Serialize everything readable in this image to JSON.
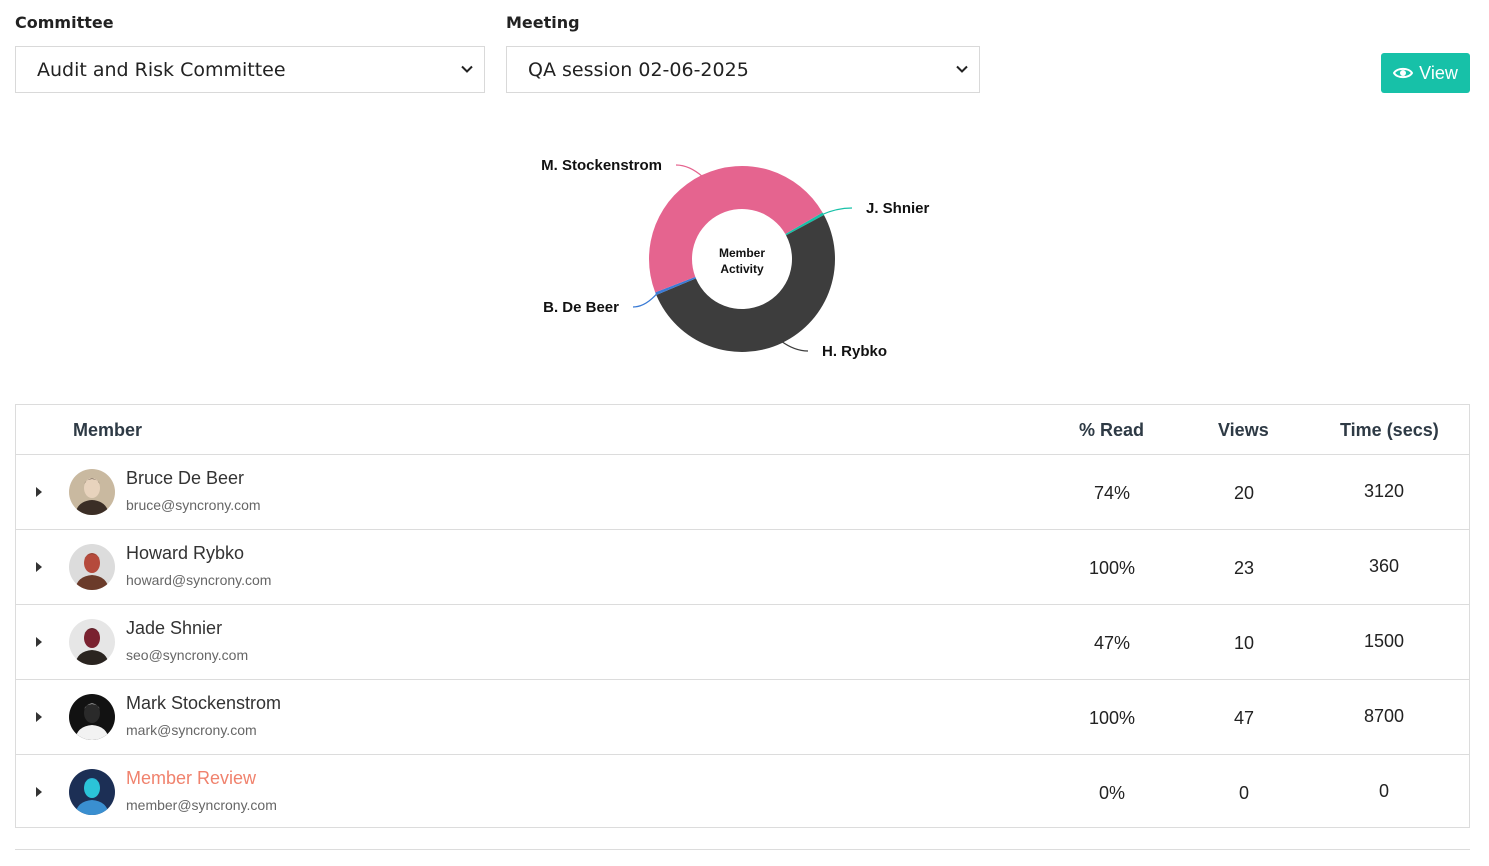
{
  "filters": {
    "committee_label": "Committee",
    "committee_value": "Audit and Risk Committee",
    "meeting_label": "Meeting",
    "meeting_value": "QA session 02-06-2025"
  },
  "view_button": {
    "label": "View",
    "icon": "eye-icon",
    "color": "#17c1a8"
  },
  "chart_data": {
    "type": "pie",
    "center_label": [
      "Member",
      "Activity"
    ],
    "categories": [
      "J. Shnier",
      "H. Rybko",
      "B. De Beer",
      "M. Stockenstrom"
    ],
    "values": [
      0.5,
      51.5,
      0.5,
      47.5
    ],
    "colors": [
      "#17c1a8",
      "#3d3d3d",
      "#3a7bd5",
      "#e5648f"
    ]
  },
  "table": {
    "headers": {
      "member": "Member",
      "read": "% Read",
      "views": "Views",
      "time": "Time (secs)"
    },
    "rows": [
      {
        "name": "Bruce De Beer",
        "email": "bruce@syncrony.com",
        "read": "74%",
        "views": "20",
        "time": "3120",
        "highlight": false
      },
      {
        "name": "Howard Rybko",
        "email": "howard@syncrony.com",
        "read": "100%",
        "views": "23",
        "time": "360",
        "highlight": false
      },
      {
        "name": "Jade Shnier",
        "email": "seo@syncrony.com",
        "read": "47%",
        "views": "10",
        "time": "1500",
        "highlight": false
      },
      {
        "name": "Mark Stockenstrom",
        "email": "mark@syncrony.com",
        "read": "100%",
        "views": "47",
        "time": "8700",
        "highlight": false
      },
      {
        "name": "Member Review",
        "email": "member@syncrony.com",
        "read": "0%",
        "views": "0",
        "time": "0",
        "highlight": true,
        "highlight_color": "#f0826d"
      }
    ]
  }
}
